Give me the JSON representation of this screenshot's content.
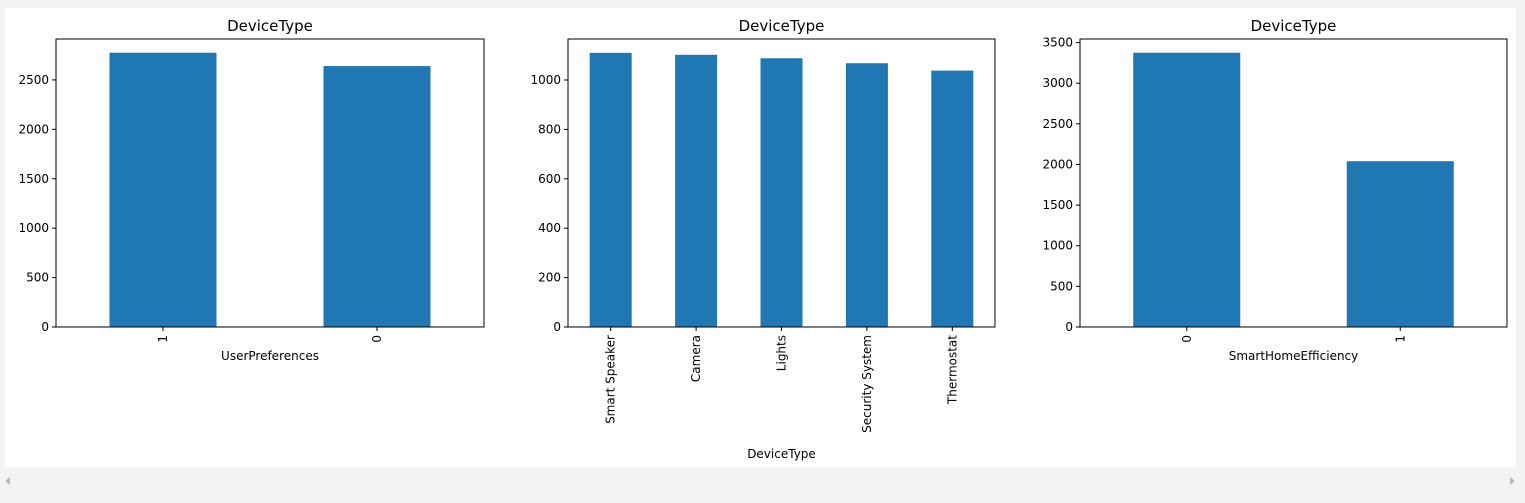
{
  "colors": {
    "bar": "#1f77b4",
    "axis": "#000000",
    "background": "#ffffff"
  },
  "chart_data": [
    {
      "type": "bar",
      "title": "DeviceType",
      "xlabel": "UserPreferences",
      "ylabel": "",
      "categories": [
        "1",
        "0"
      ],
      "values": [
        2775,
        2640
      ],
      "ylim": [
        0,
        2914
      ],
      "yticks": [
        0,
        500,
        1000,
        1500,
        2000,
        2500
      ],
      "grid": false,
      "legend": "none"
    },
    {
      "type": "bar",
      "title": "DeviceType",
      "xlabel": "DeviceType",
      "ylabel": "",
      "categories": [
        "Smart Speaker",
        "Camera",
        "Lights",
        "Security System",
        "Thermostat"
      ],
      "values": [
        1110,
        1102,
        1088,
        1068,
        1038
      ],
      "ylim": [
        0,
        1166
      ],
      "yticks": [
        0,
        200,
        400,
        600,
        800,
        1000
      ],
      "grid": false,
      "legend": "none"
    },
    {
      "type": "bar",
      "title": "DeviceType",
      "xlabel": "SmartHomeEfficiency",
      "ylabel": "",
      "categories": [
        "0",
        "1"
      ],
      "values": [
        3375,
        2040
      ],
      "ylim": [
        0,
        3544
      ],
      "yticks": [
        0,
        500,
        1000,
        1500,
        2000,
        2500,
        3000,
        3500
      ],
      "grid": false,
      "legend": "none"
    }
  ],
  "scrollbar": {
    "left_icon": "triangle-left-icon",
    "right_icon": "triangle-right-icon"
  }
}
